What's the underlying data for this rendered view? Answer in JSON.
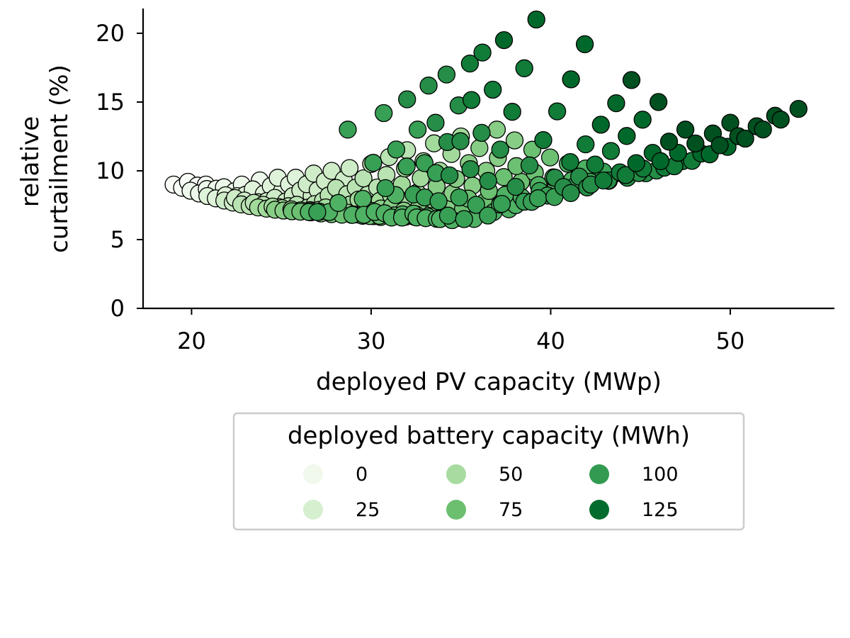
{
  "chart_data": {
    "type": "scatter",
    "xlabel": "deployed PV capacity (MWp)",
    "ylabel_lines": [
      "relative",
      "curtailment (%)"
    ],
    "xlim": [
      17.3,
      55.8
    ],
    "ylim": [
      0,
      21.8
    ],
    "xticks": [
      20,
      30,
      40,
      50
    ],
    "yticks": [
      0,
      5,
      10,
      15,
      20
    ],
    "grid": false,
    "legend": {
      "title": "deployed battery capacity (MWh)",
      "placement": "below-center",
      "entries": [
        {
          "label": "0",
          "battery": 0,
          "color": "#f0f9ec"
        },
        {
          "label": "25",
          "battery": 25,
          "color": "#d5efcf"
        },
        {
          "label": "50",
          "battery": 50,
          "color": "#a7dba0"
        },
        {
          "label": "75",
          "battery": 75,
          "color": "#6bbf6f"
        },
        {
          "label": "100",
          "battery": 100,
          "color": "#329b51"
        },
        {
          "label": "125",
          "battery": 125,
          "color": "#036c2c"
        }
      ]
    },
    "color_scale": {
      "min": 0,
      "max": 135,
      "stops": [
        "#f7fcf5",
        "#e5f5e0",
        "#c7e9c0",
        "#a1d99b",
        "#74c476",
        "#41ab5d",
        "#238b45",
        "#006d2c",
        "#00441b"
      ]
    },
    "marker_edge_color": "#000000",
    "curves": [
      {
        "start": [
          19.0,
          9.0
        ],
        "min": [
          27.0,
          7.0
        ],
        "end": [
          27.0,
          11.2
        ]
      },
      {
        "start": [
          19.8,
          9.2
        ],
        "min": [
          28.0,
          7.0
        ],
        "end": [
          28.7,
          13.0
        ]
      },
      {
        "start": [
          20.8,
          9.0
        ],
        "min": [
          29.0,
          6.8
        ],
        "end": [
          30.7,
          14.2
        ]
      },
      {
        "start": [
          21.8,
          8.8
        ],
        "min": [
          30.0,
          6.8
        ],
        "end": [
          32.0,
          15.2
        ]
      },
      {
        "start": [
          22.8,
          9.0
        ],
        "min": [
          30.5,
          6.7
        ],
        "end": [
          33.2,
          16.2
        ]
      },
      {
        "start": [
          23.8,
          9.3
        ],
        "min": [
          31.5,
          6.6
        ],
        "end": [
          34.2,
          17.0
        ]
      },
      {
        "start": [
          24.8,
          9.5
        ],
        "min": [
          32.0,
          6.6
        ],
        "end": [
          35.5,
          17.8
        ]
      },
      {
        "start": [
          25.8,
          9.5
        ],
        "min": [
          33.0,
          6.6
        ],
        "end": [
          36.2,
          18.6
        ]
      },
      {
        "start": [
          26.8,
          9.8
        ],
        "min": [
          34.0,
          6.5
        ],
        "end": [
          37.4,
          19.5
        ]
      },
      {
        "start": [
          27.8,
          10.0
        ],
        "min": [
          35.0,
          6.4
        ],
        "end": [
          39.2,
          21.0
        ]
      },
      {
        "start": [
          28.8,
          10.2
        ],
        "min": [
          36.0,
          6.5
        ],
        "end": [
          41.9,
          19.2
        ]
      },
      {
        "start": [
          30.0,
          10.5
        ],
        "min": [
          37.0,
          7.0
        ],
        "end": [
          44.5,
          16.6
        ]
      },
      {
        "start": [
          31.0,
          11.0
        ],
        "min": [
          38.0,
          7.5
        ],
        "end": [
          46.0,
          15.0
        ]
      },
      {
        "start": [
          32.0,
          11.5
        ],
        "min": [
          39.5,
          8.0
        ],
        "end": [
          47.5,
          13.0
        ]
      },
      {
        "start": [
          33.5,
          12.0
        ],
        "min": [
          41.0,
          8.8
        ],
        "end": [
          50.0,
          13.5
        ]
      },
      {
        "start": [
          35.0,
          12.5
        ],
        "min": [
          42.5,
          9.2
        ],
        "end": [
          52.5,
          14.0
        ]
      },
      {
        "start": [
          37.0,
          13.0
        ],
        "min": [
          44.5,
          9.8
        ],
        "end": [
          53.8,
          14.5
        ]
      }
    ],
    "battery_levels": [
      0,
      10,
      20,
      30,
      40,
      50,
      60,
      70,
      80,
      90,
      100,
      110,
      120,
      130
    ]
  }
}
